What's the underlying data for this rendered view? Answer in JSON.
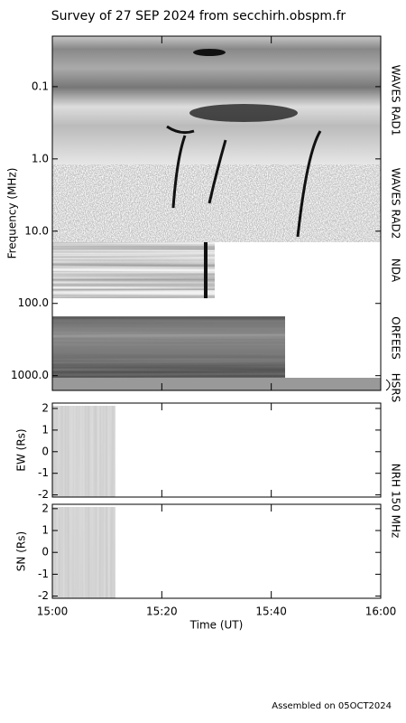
{
  "chart_data": [
    {
      "type": "spectrogram",
      "title": "Survey of 27 SEP 2024 from secchirh.obspm.fr",
      "ylabel": "Frequency (MHz)",
      "log_y": true,
      "ylim": [
        0.02,
        1600
      ],
      "yticks": [
        {
          "value": 0.1,
          "label": "0.1"
        },
        {
          "value": 1,
          "label": "1.0"
        },
        {
          "value": 10,
          "label": "10.0"
        },
        {
          "value": 100,
          "label": "100.0"
        },
        {
          "value": 1000,
          "label": "1000.0"
        }
      ],
      "xlim": [
        "15:00",
        "16:00"
      ],
      "instruments": [
        "WAVES RAD1",
        "WAVES RAD2",
        "NDA",
        "ORFEES",
        "HSRS"
      ]
    },
    {
      "type": "image",
      "ylabel": "EW (Rs)",
      "ylim": [
        -2.1,
        2.25
      ],
      "yticks": [
        -2,
        -1,
        0,
        1,
        2
      ],
      "xlim": [
        "15:00",
        "16:00"
      ]
    },
    {
      "type": "image",
      "ylabel": "SN (Rs)",
      "ylim": [
        -2.1,
        2.2
      ],
      "yticks": [
        -2,
        -1,
        0,
        1,
        2
      ],
      "xlim": [
        "15:00",
        "16:00"
      ],
      "xticks": [
        "15:00",
        "15:20",
        "15:40",
        "16:00"
      ],
      "xlabel": "Time (UT)",
      "instrument": "NRH 150 MHz"
    }
  ],
  "footer": "Assembled on 05OCT2024"
}
